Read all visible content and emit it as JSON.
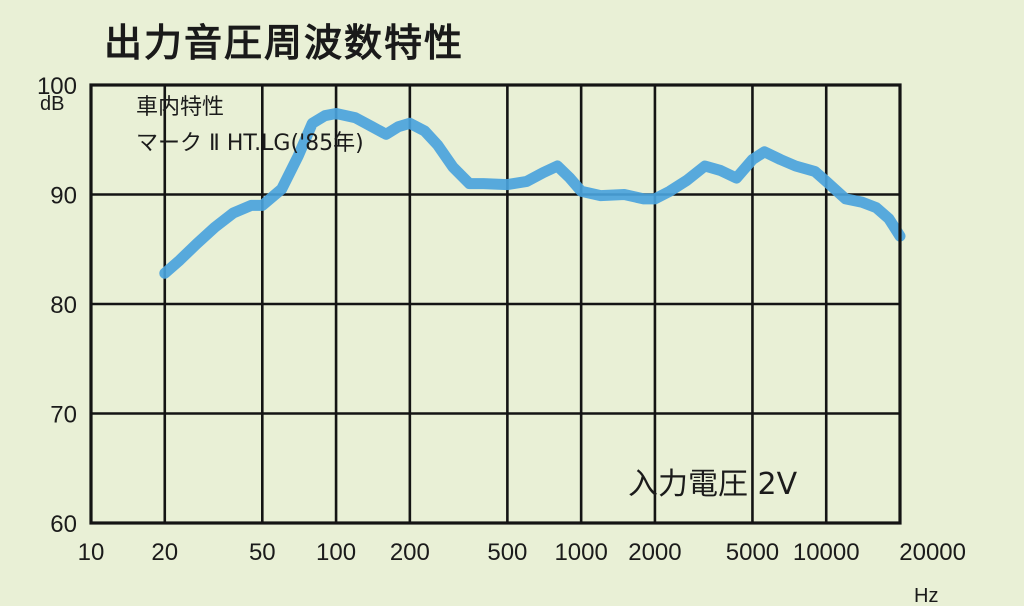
{
  "chart_data": {
    "type": "line",
    "title": "出力音圧周波数特性",
    "ylabel": "dB",
    "xlabel": "Hz",
    "x_scale": "log",
    "xlim": [
      10,
      20000
    ],
    "ylim": [
      60,
      100
    ],
    "x_ticks": [
      10,
      20,
      50,
      100,
      200,
      500,
      1000,
      2000,
      5000,
      10000,
      20000
    ],
    "x_tick_labels": [
      "10",
      "20",
      "50",
      "100",
      "200",
      "500",
      "1000",
      "2000",
      "5000",
      "10000",
      "20000"
    ],
    "y_ticks": [
      60,
      70,
      80,
      90,
      100
    ],
    "y_tick_labels": [
      "60",
      "70",
      "80",
      "90",
      "100"
    ],
    "grid": true,
    "annotation_lines": [
      "車内特性",
      "マーク Ⅱ  HT.LG('85年)"
    ],
    "input_voltage_label": "入力電圧  2V",
    "series": [
      {
        "color": "#4aa3dc",
        "x": [
          20,
          23,
          27,
          32,
          38,
          45,
          50,
          60,
          70,
          80,
          90,
          100,
          120,
          140,
          160,
          180,
          200,
          230,
          260,
          300,
          350,
          400,
          500,
          600,
          700,
          800,
          900,
          1000,
          1200,
          1500,
          1800,
          2000,
          2300,
          2700,
          3200,
          3700,
          4300,
          5000,
          5600,
          6500,
          7500,
          9000,
          10000,
          12000,
          14000,
          16000,
          18000,
          20000
        ],
        "y": [
          82.8,
          84,
          85.5,
          87,
          88.3,
          89,
          89,
          90.5,
          93.5,
          96.5,
          97.2,
          97.4,
          97,
          96.2,
          95.5,
          96.2,
          96.5,
          95.8,
          94.5,
          92.5,
          91,
          91,
          90.9,
          91.2,
          92,
          92.6,
          91.5,
          90.3,
          89.9,
          90,
          89.6,
          89.6,
          90.3,
          91.3,
          92.6,
          92.2,
          91.5,
          93.2,
          93.9,
          93.2,
          92.6,
          92.1,
          91.2,
          89.6,
          89.3,
          88.8,
          87.8,
          86.2
        ]
      }
    ]
  }
}
